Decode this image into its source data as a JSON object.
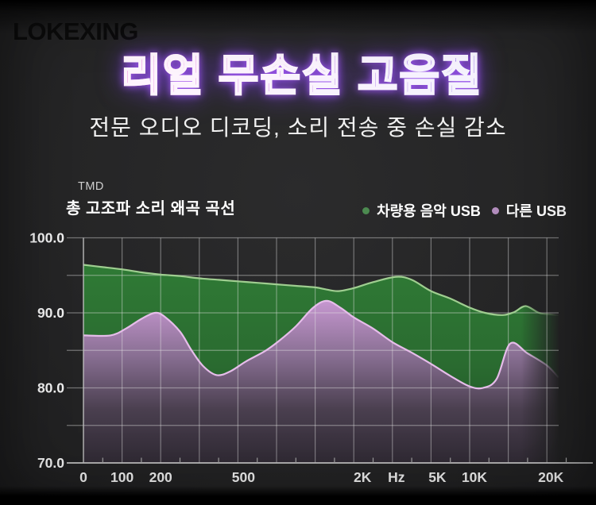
{
  "brand": "LOKEXING",
  "hero": {
    "title": "리얼 무손실 고음질",
    "subtitle": "전문 오디오 디코딩, 소리 전송 중 손실 감소"
  },
  "chart": {
    "corner_label": "TMD",
    "title": "총 고조파 소리 왜곡 곡선",
    "legend": [
      {
        "label": "차량용 음악 USB",
        "color": "#4c8a50"
      },
      {
        "label": "다른 USB",
        "color": "#b18cbc"
      }
    ]
  },
  "chart_data": {
    "type": "area",
    "title": "총 고조파 소리 왜곡 곡선",
    "x_unit": "Hz",
    "ylim": [
      70,
      100
    ],
    "y_gridline_step": 5,
    "x_gridline_count": 13,
    "grid_color": "#e2e2e2",
    "axis_color": "#bdbdbd",
    "y_ticks": [
      {
        "label": "100.0",
        "value": 100
      },
      {
        "label": "90.0",
        "value": 90
      },
      {
        "label": "80.0",
        "value": 80
      },
      {
        "label": "70.0",
        "value": 70
      }
    ],
    "x_ticks": [
      {
        "label": "0",
        "i": 0,
        "dx": 0
      },
      {
        "label": "100",
        "i": 1,
        "dx": 0
      },
      {
        "label": "200",
        "i": 2,
        "dx": 0
      },
      {
        "label": "500",
        "i": 4,
        "dx": 7
      },
      {
        "label": "2K",
        "i": 7,
        "dx": 11
      },
      {
        "label": "Hz",
        "i": 8,
        "dx": 5
      },
      {
        "label": "5K",
        "i": 9,
        "dx": 8
      },
      {
        "label": "10K",
        "i": 10,
        "dx": 6
      },
      {
        "label": "20K",
        "i": 12,
        "dx": 5
      }
    ],
    "series": [
      {
        "name": "차량용 음악 USB",
        "line_color": "#9fce90",
        "fill_gradient": [
          "#2f7a35",
          "#2a6b30",
          "#1d4d23"
        ],
        "points": [
          [
            0,
            96.4
          ],
          [
            0.5,
            96.1
          ],
          [
            1,
            95.8
          ],
          [
            1.5,
            95.4
          ],
          [
            2,
            95.1
          ],
          [
            2.5,
            94.9
          ],
          [
            3,
            94.6
          ],
          [
            3.5,
            94.4
          ],
          [
            4,
            94.2
          ],
          [
            4.5,
            94.0
          ],
          [
            5,
            93.8
          ],
          [
            5.5,
            93.6
          ],
          [
            6,
            93.4
          ],
          [
            6.3,
            93.1
          ],
          [
            6.6,
            92.9
          ],
          [
            7,
            93.3
          ],
          [
            7.5,
            94.1
          ],
          [
            8.1,
            94.8
          ],
          [
            8.5,
            94.4
          ],
          [
            9,
            92.9
          ],
          [
            9.5,
            91.9
          ],
          [
            10,
            90.7
          ],
          [
            10.4,
            90.0
          ],
          [
            10.85,
            89.7
          ],
          [
            11.15,
            90.1
          ],
          [
            11.45,
            90.9
          ],
          [
            11.8,
            90.0
          ],
          [
            12.1,
            89.8
          ],
          [
            12.3,
            89.7
          ]
        ]
      },
      {
        "name": "다른 USB",
        "line_color": "#e6bdea",
        "fill_gradient": [
          "#c697d0",
          "#8a7094",
          "#4a3f4f",
          "#302a34"
        ],
        "points": [
          [
            0,
            87.0
          ],
          [
            0.7,
            87.0
          ],
          [
            1.1,
            87.9
          ],
          [
            1.5,
            89.2
          ],
          [
            1.85,
            90.0
          ],
          [
            2.1,
            89.5
          ],
          [
            2.5,
            87.5
          ],
          [
            2.8,
            85.0
          ],
          [
            3.1,
            82.9
          ],
          [
            3.45,
            81.7
          ],
          [
            3.8,
            82.2
          ],
          [
            4.2,
            83.5
          ],
          [
            4.7,
            84.9
          ],
          [
            5.05,
            86.2
          ],
          [
            5.5,
            88.2
          ],
          [
            5.95,
            90.7
          ],
          [
            6.3,
            91.6
          ],
          [
            6.65,
            90.7
          ],
          [
            7,
            89.4
          ],
          [
            7.5,
            87.9
          ],
          [
            8,
            86.1
          ],
          [
            8.5,
            84.7
          ],
          [
            9,
            83.2
          ],
          [
            9.5,
            81.6
          ],
          [
            10,
            80.2
          ],
          [
            10.35,
            80.0
          ],
          [
            10.7,
            81.2
          ],
          [
            11.05,
            85.9
          ],
          [
            11.5,
            84.6
          ],
          [
            12,
            83.0
          ],
          [
            12.3,
            81.4
          ]
        ]
      }
    ]
  }
}
